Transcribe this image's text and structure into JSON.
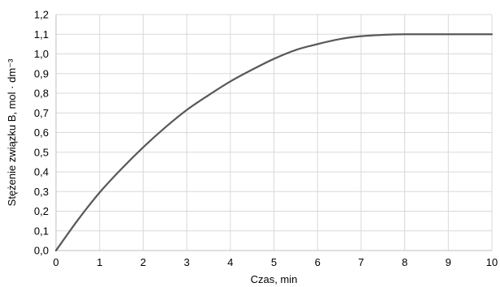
{
  "chart_data": {
    "type": "line",
    "xlabel": "Czas, min",
    "ylabel": "Stężenie związku B, mol · dm⁻³",
    "xlim": [
      0,
      10
    ],
    "ylim": [
      0,
      1.2
    ],
    "x_ticks": [
      "0",
      "1",
      "2",
      "3",
      "4",
      "5",
      "6",
      "7",
      "8",
      "9",
      "10"
    ],
    "y_ticks": [
      "0,0",
      "0,1",
      "0,2",
      "0,3",
      "0,4",
      "0,5",
      "0,6",
      "0,7",
      "0,8",
      "0,9",
      "1,0",
      "1,1",
      "1,2"
    ],
    "grid": true,
    "legend": "none",
    "series": [
      {
        "color": "#595959",
        "x": [
          0,
          0.5,
          1,
          1.5,
          2,
          2.5,
          3,
          3.5,
          4,
          4.5,
          5,
          5.5,
          6,
          6.5,
          7,
          7.5,
          8,
          8.5,
          9,
          9.5,
          10
        ],
        "y": [
          0,
          0.155,
          0.295,
          0.415,
          0.525,
          0.625,
          0.715,
          0.79,
          0.86,
          0.92,
          0.975,
          1.02,
          1.05,
          1.075,
          1.09,
          1.097,
          1.1,
          1.1,
          1.1,
          1.1,
          1.1
        ]
      }
    ]
  }
}
